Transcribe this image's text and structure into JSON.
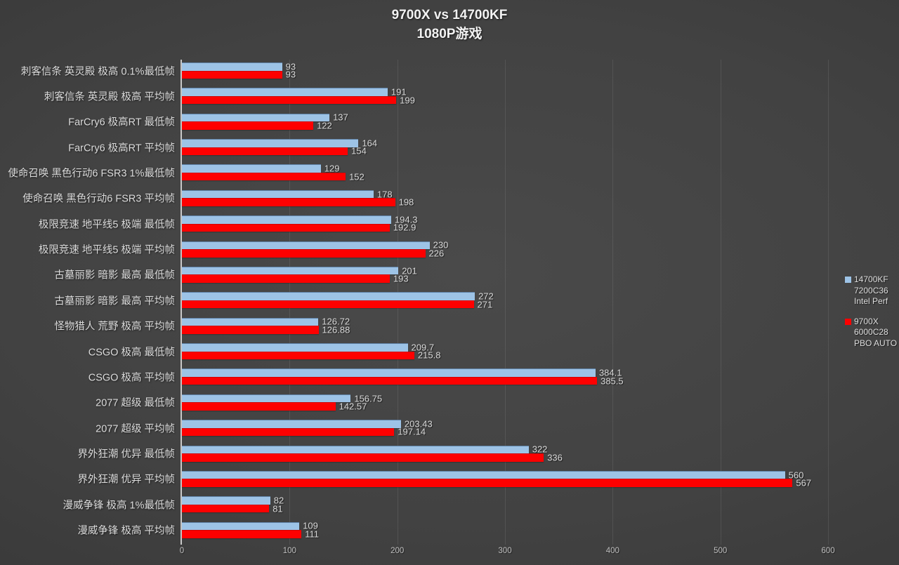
{
  "title": {
    "line1": "9700X vs 14700KF",
    "line2": "1080P游戏"
  },
  "legend": [
    {
      "name": "14700kf",
      "color": "#9dc3e6",
      "lines": [
        "14700KF",
        "7200C36",
        "Intel Perf"
      ]
    },
    {
      "name": "9700x",
      "color": "#fe0000",
      "lines": [
        "9700X",
        "6000C28",
        "PBO AUTO"
      ]
    }
  ],
  "chart_data": {
    "type": "bar",
    "orientation": "horizontal",
    "title": "9700X vs 14700KF 1080P游戏",
    "xlabel": "",
    "ylabel": "",
    "xlim": [
      0,
      600
    ],
    "xticks": [
      0,
      100,
      200,
      300,
      400,
      500,
      600
    ],
    "grid": true,
    "legend_position": "right",
    "categories": [
      "刺客信条 英灵殿 极高 0.1%最低帧",
      "刺客信条 英灵殿 极高 平均帧",
      "FarCry6 极高RT 最低帧",
      "FarCry6 极高RT 平均帧",
      "使命召唤 黑色行动6 FSR3 1%最低帧",
      "使命召唤 黑色行动6 FSR3 平均帧",
      "极限竞速 地平线5 极端 最低帧",
      "极限竞速 地平线5 极端 平均帧",
      "古墓丽影 暗影 最高 最低帧",
      "古墓丽影 暗影 最高 平均帧",
      "怪物猎人 荒野 极高 平均帧",
      "CSGO 极高 最低帧",
      "CSGO 极高 平均帧",
      "2077 超级 最低帧",
      "2077 超级 平均帧",
      "界外狂潮 优异 最低帧",
      "界外狂潮 优异 平均帧",
      "漫威争锋 极高 1%最低帧",
      "漫威争锋 极高 平均帧"
    ],
    "series": [
      {
        "name": "14700KF 7200C36 Intel Perf",
        "color": "#9dc3e6",
        "values": [
          93,
          191,
          137,
          164,
          129,
          178,
          194.3,
          230,
          201,
          272,
          126.72,
          209.7,
          384.1,
          156.75,
          203.43,
          322,
          560,
          82,
          109
        ]
      },
      {
        "name": "9700X 6000C28 PBO AUTO",
        "color": "#fe0000",
        "values": [
          93,
          199,
          122,
          154,
          152,
          198,
          192.9,
          226,
          193,
          271,
          126.88,
          215.8,
          385.5,
          142.57,
          197.14,
          336,
          567,
          81,
          111
        ]
      }
    ]
  }
}
